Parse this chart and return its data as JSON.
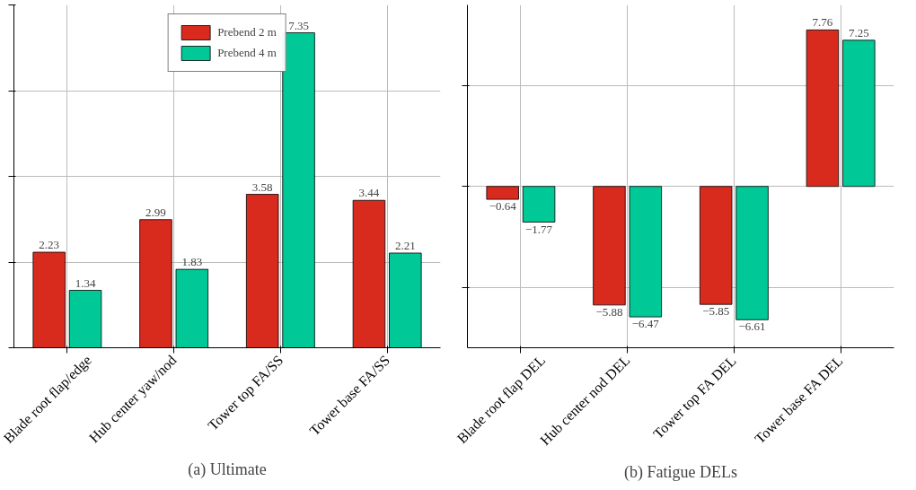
{
  "chart_data": [
    {
      "type": "bar",
      "title": "(a) Ultimate",
      "categories": [
        "Blade root flap/edge",
        "Hub center yaw/nod",
        "Tower top FA/SS",
        "Tower base FA/SS"
      ],
      "series": [
        {
          "name": "Prebend 2 m",
          "color": "#d92a1e",
          "values": [
            2.23,
            2.99,
            3.58,
            3.44
          ]
        },
        {
          "name": "Prebend 4 m",
          "color": "#00c896",
          "values": [
            1.34,
            1.83,
            7.35,
            2.21
          ]
        }
      ],
      "ylim": [
        0,
        8
      ],
      "yticks": [
        {
          "value": 0,
          "label": null
        },
        {
          "value": 2,
          "label": null
        },
        {
          "value": 4,
          "label": null
        },
        {
          "value": 6,
          "label": null
        },
        {
          "value": 8,
          "label": null
        }
      ],
      "tick_labels": "x",
      "grid": true,
      "legend": "top",
      "data_labels": true
    },
    {
      "type": "bar",
      "title": "(b) Fatigue DELs",
      "categories": [
        "Blade root flap DEL",
        "Hub center nod DEL",
        "Tower top FA DEL",
        "Tower base FA DEL"
      ],
      "series": [
        {
          "color": "#d92a1e",
          "values": [
            -0.64,
            -5.88,
            -5.85,
            7.76
          ]
        },
        {
          "color": "#00c896",
          "values": [
            -1.77,
            -6.47,
            -6.61,
            7.25
          ]
        }
      ],
      "ylim": [
        -8,
        9
      ],
      "yticks": [
        {
          "value": -5,
          "label": null
        },
        {
          "value": 0,
          "label": null
        },
        {
          "value": 5,
          "label": null
        }
      ],
      "tick_labels": "x",
      "grid": true,
      "data_labels": true
    }
  ]
}
